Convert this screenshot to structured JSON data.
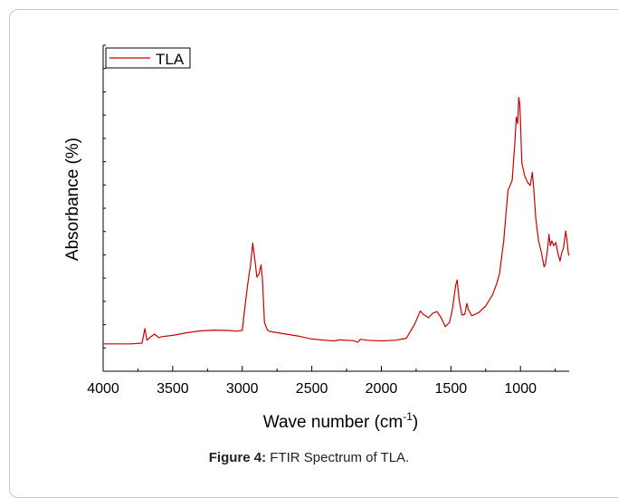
{
  "caption": {
    "label": "Figure 4:",
    "text": " FTIR Spectrum of TLA."
  },
  "chart_data": {
    "type": "line",
    "title": "",
    "xlabel": "Wave number (cm",
    "xlabel_sup": "-1",
    "xlabel_end": ")",
    "ylabel": "Absorbance (%)",
    "xlim": [
      4000,
      650
    ],
    "ylim": [
      0,
      100
    ],
    "x_ticks": [
      4000,
      3500,
      3000,
      2500,
      2000,
      1500,
      1000
    ],
    "x_tick_labels": [
      "4000",
      "3500",
      "3000",
      "2500",
      "2000",
      "1500",
      "1000"
    ],
    "x_reversed": true,
    "y_tick_labels_shown": false,
    "legend_position": "top-left",
    "series": [
      {
        "name": "TLA",
        "color": "#cc0000",
        "points": [
          [
            4000,
            8.4
          ],
          [
            3800,
            8.4
          ],
          [
            3720,
            8.6
          ],
          [
            3700,
            13.1
          ],
          [
            3685,
            9.5
          ],
          [
            3660,
            10.5
          ],
          [
            3630,
            11.4
          ],
          [
            3600,
            10.3
          ],
          [
            3580,
            10.6
          ],
          [
            3500,
            11.0
          ],
          [
            3400,
            11.8
          ],
          [
            3300,
            12.4
          ],
          [
            3200,
            12.6
          ],
          [
            3100,
            12.5
          ],
          [
            3040,
            12.3
          ],
          [
            3000,
            12.5
          ],
          [
            2980,
            20.0
          ],
          [
            2960,
            27.0
          ],
          [
            2940,
            32.8
          ],
          [
            2925,
            39.3
          ],
          [
            2910,
            34.4
          ],
          [
            2895,
            28.9
          ],
          [
            2880,
            29.8
          ],
          [
            2865,
            32.6
          ],
          [
            2855,
            28.4
          ],
          [
            2840,
            14.9
          ],
          [
            2820,
            12.7
          ],
          [
            2800,
            12.2
          ],
          [
            2700,
            11.5
          ],
          [
            2600,
            10.8
          ],
          [
            2500,
            9.9
          ],
          [
            2400,
            9.5
          ],
          [
            2340,
            9.3
          ],
          [
            2300,
            9.6
          ],
          [
            2200,
            9.4
          ],
          [
            2170,
            8.9
          ],
          [
            2150,
            9.8
          ],
          [
            2100,
            9.5
          ],
          [
            2000,
            9.3
          ],
          [
            1900,
            9.5
          ],
          [
            1820,
            10.1
          ],
          [
            1760,
            14.5
          ],
          [
            1720,
            18.5
          ],
          [
            1700,
            17.5
          ],
          [
            1660,
            16.4
          ],
          [
            1630,
            17.8
          ],
          [
            1600,
            18.3
          ],
          [
            1570,
            16.4
          ],
          [
            1540,
            13.7
          ],
          [
            1510,
            15.0
          ],
          [
            1490,
            18.9
          ],
          [
            1465,
            26.5
          ],
          [
            1455,
            28.0
          ],
          [
            1440,
            21.5
          ],
          [
            1420,
            17.2
          ],
          [
            1400,
            17.5
          ],
          [
            1385,
            20.8
          ],
          [
            1375,
            19.0
          ],
          [
            1350,
            17.0
          ],
          [
            1300,
            18.0
          ],
          [
            1250,
            20.0
          ],
          [
            1200,
            23.5
          ],
          [
            1170,
            27.0
          ],
          [
            1150,
            30.0
          ],
          [
            1120,
            40.0
          ],
          [
            1090,
            55.5
          ],
          [
            1060,
            58.5
          ],
          [
            1040,
            70.0
          ],
          [
            1030,
            78.0
          ],
          [
            1020,
            76.0
          ],
          [
            1012,
            84.0
          ],
          [
            1005,
            82.0
          ],
          [
            1000,
            77.0
          ],
          [
            990,
            64.0
          ],
          [
            970,
            60.0
          ],
          [
            950,
            58.0
          ],
          [
            930,
            57.0
          ],
          [
            915,
            61.0
          ],
          [
            905,
            56.4
          ],
          [
            890,
            47.0
          ],
          [
            870,
            40.0
          ],
          [
            850,
            36.5
          ],
          [
            830,
            32.0
          ],
          [
            820,
            33.0
          ],
          [
            805,
            37.5
          ],
          [
            795,
            42.0
          ],
          [
            785,
            38.5
          ],
          [
            775,
            40.0
          ],
          [
            760,
            38.5
          ],
          [
            745,
            39.5
          ],
          [
            730,
            36.0
          ],
          [
            715,
            33.8
          ],
          [
            705,
            36.0
          ],
          [
            690,
            38.0
          ],
          [
            675,
            43.0
          ],
          [
            665,
            40.0
          ],
          [
            655,
            36.0
          ],
          [
            650,
            35.5
          ]
        ]
      }
    ]
  }
}
